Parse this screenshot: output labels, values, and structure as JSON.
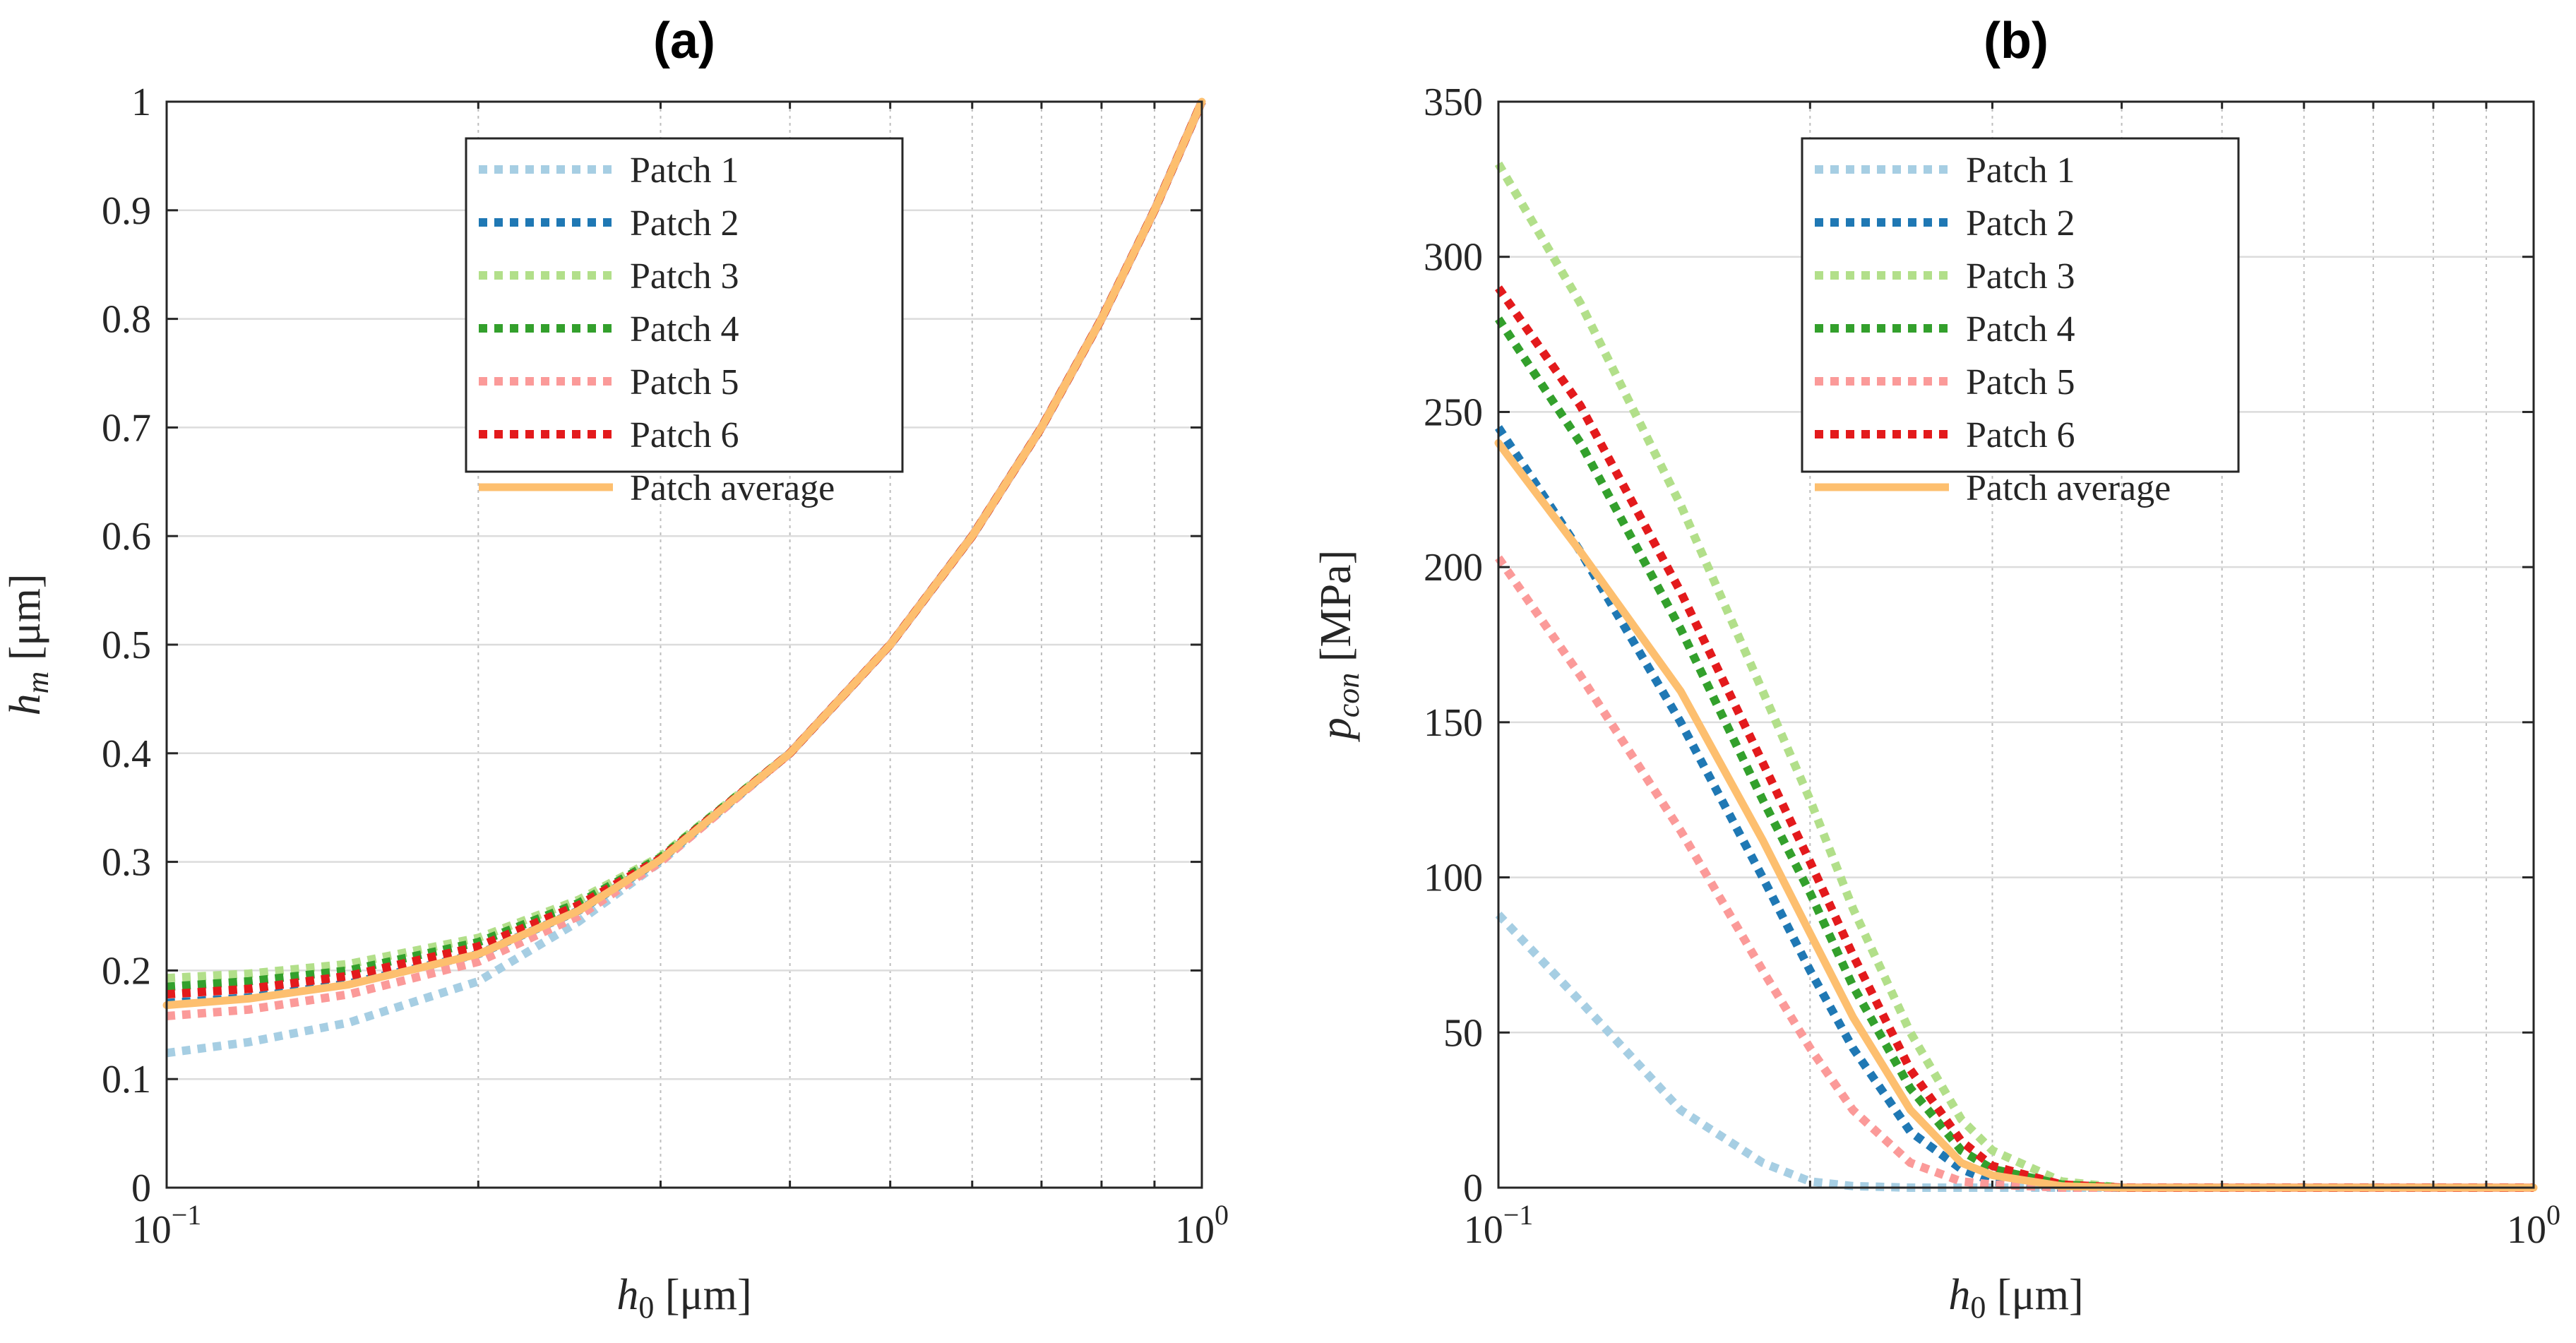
{
  "chart_data": [
    {
      "type": "line",
      "title": "(a)",
      "xscale": "log",
      "xlim": [
        0.1,
        1
      ],
      "ylim": [
        0,
        1
      ],
      "xticks": [
        {
          "value": 0.1,
          "base": "10",
          "exp": "−1"
        },
        {
          "value": 1,
          "base": "10",
          "exp": "0"
        }
      ],
      "yticks": [
        0,
        0.1,
        0.2,
        0.3,
        0.4,
        0.5,
        0.6,
        0.7,
        0.8,
        0.9,
        1
      ],
      "ytick_labels": [
        "0",
        "0.1",
        "0.2",
        "0.3",
        "0.4",
        "0.5",
        "0.6",
        "0.7",
        "0.8",
        "0.9",
        "1"
      ],
      "xlabel": {
        "var": "h",
        "sub": "0",
        "unit": "[μm]"
      },
      "ylabel": {
        "var": "h",
        "sub": "m",
        "unit": "[μm]"
      },
      "grid": true,
      "legend_position": "top-center",
      "x": [
        0.1,
        0.12,
        0.15,
        0.2,
        0.25,
        0.3,
        0.4,
        0.5,
        0.6,
        0.7,
        0.8,
        0.9,
        1.0
      ],
      "series": [
        {
          "name": "Patch 1",
          "color": "#a6cee3",
          "style": "dotted",
          "values": [
            0.124,
            0.134,
            0.152,
            0.19,
            0.245,
            0.3,
            0.4,
            0.5,
            0.6,
            0.7,
            0.8,
            0.9,
            1.0
          ]
        },
        {
          "name": "Patch 2",
          "color": "#1f78b4",
          "style": "dotted",
          "values": [
            0.17,
            0.175,
            0.188,
            0.215,
            0.255,
            0.302,
            0.4,
            0.5,
            0.6,
            0.7,
            0.8,
            0.9,
            1.0
          ]
        },
        {
          "name": "Patch 3",
          "color": "#b2df8a",
          "style": "dotted",
          "values": [
            0.193,
            0.197,
            0.206,
            0.23,
            0.265,
            0.305,
            0.4,
            0.5,
            0.6,
            0.7,
            0.8,
            0.9,
            1.0
          ]
        },
        {
          "name": "Patch 4",
          "color": "#33a02c",
          "style": "dotted",
          "values": [
            0.185,
            0.19,
            0.2,
            0.226,
            0.262,
            0.304,
            0.4,
            0.5,
            0.6,
            0.7,
            0.8,
            0.9,
            1.0
          ]
        },
        {
          "name": "Patch 5",
          "color": "#fb9a99",
          "style": "dotted",
          "values": [
            0.158,
            0.164,
            0.178,
            0.208,
            0.25,
            0.3,
            0.4,
            0.5,
            0.6,
            0.7,
            0.8,
            0.9,
            1.0
          ]
        },
        {
          "name": "Patch 6",
          "color": "#e31a1c",
          "style": "dotted",
          "values": [
            0.178,
            0.183,
            0.195,
            0.222,
            0.26,
            0.303,
            0.4,
            0.5,
            0.6,
            0.7,
            0.8,
            0.9,
            1.0
          ]
        },
        {
          "name": "Patch average",
          "color": "#fdbf6f",
          "style": "solid",
          "values": [
            0.168,
            0.174,
            0.187,
            0.215,
            0.255,
            0.302,
            0.4,
            0.5,
            0.6,
            0.7,
            0.8,
            0.9,
            1.0
          ]
        }
      ]
    },
    {
      "type": "line",
      "title": "(b)",
      "xscale": "log",
      "xlim": [
        0.1,
        1
      ],
      "ylim": [
        0,
        350
      ],
      "xticks": [
        {
          "value": 0.1,
          "base": "10",
          "exp": "−1"
        },
        {
          "value": 1,
          "base": "10",
          "exp": "0"
        }
      ],
      "yticks": [
        0,
        50,
        100,
        150,
        200,
        250,
        300,
        350
      ],
      "ytick_labels": [
        "0",
        "50",
        "100",
        "150",
        "200",
        "250",
        "300",
        "350"
      ],
      "xlabel": {
        "var": "h",
        "sub": "0",
        "unit": "[μm]"
      },
      "ylabel": {
        "var": "p",
        "sub": "con",
        "unit": "[MPa]"
      },
      "grid": true,
      "legend_position": "top-center",
      "x": [
        0.1,
        0.12,
        0.15,
        0.18,
        0.2,
        0.22,
        0.25,
        0.28,
        0.3,
        0.35,
        0.4,
        0.5,
        0.6,
        0.8,
        1.0
      ],
      "series": [
        {
          "name": "Patch 1",
          "color": "#a6cee3",
          "style": "dotted",
          "values": [
            88,
            60,
            25,
            8,
            2,
            0.5,
            0,
            0,
            0,
            0,
            0,
            0,
            0,
            0,
            0
          ]
        },
        {
          "name": "Patch 2",
          "color": "#1f78b4",
          "style": "dotted",
          "values": [
            245,
            205,
            150,
            100,
            70,
            45,
            18,
            6,
            2,
            0,
            0,
            0,
            0,
            0,
            0
          ]
        },
        {
          "name": "Patch 3",
          "color": "#b2df8a",
          "style": "dotted",
          "values": [
            330,
            285,
            220,
            160,
            125,
            90,
            50,
            22,
            12,
            2,
            0,
            0,
            0,
            0,
            0
          ]
        },
        {
          "name": "Patch 4",
          "color": "#33a02c",
          "style": "dotted",
          "values": [
            280,
            240,
            180,
            125,
            95,
            65,
            32,
            12,
            6,
            1,
            0,
            0,
            0,
            0,
            0
          ]
        },
        {
          "name": "Patch 5",
          "color": "#fb9a99",
          "style": "dotted",
          "values": [
            203,
            165,
            115,
            70,
            45,
            25,
            8,
            2,
            1,
            0,
            0,
            0,
            0,
            0,
            0
          ]
        },
        {
          "name": "Patch 6",
          "color": "#e31a1c",
          "style": "dotted",
          "values": [
            290,
            252,
            192,
            137,
            105,
            75,
            38,
            15,
            7,
            1,
            0,
            0,
            0,
            0,
            0
          ]
        },
        {
          "name": "Patch average",
          "color": "#fdbf6f",
          "style": "solid",
          "values": [
            240,
            205,
            160,
            112,
            82,
            55,
            25,
            8,
            4,
            0.5,
            0,
            0,
            0,
            0,
            0
          ]
        }
      ]
    }
  ]
}
